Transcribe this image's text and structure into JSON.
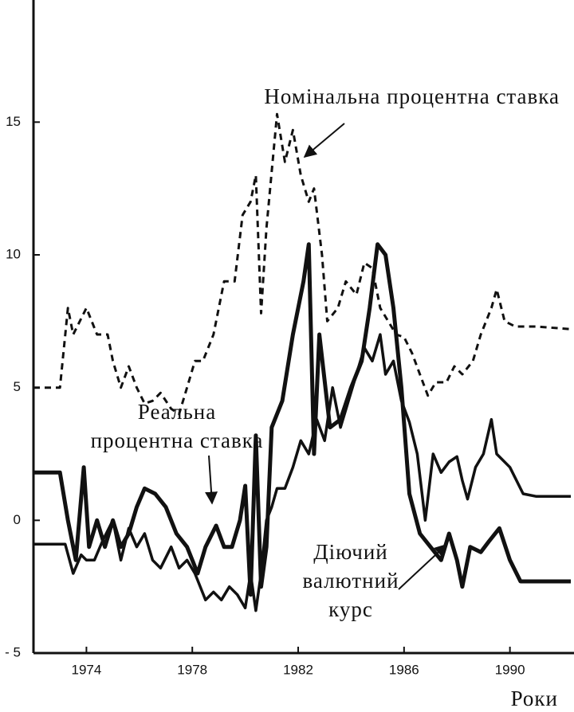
{
  "chart_data": {
    "type": "line",
    "xlim": [
      1972,
      1992.3
    ],
    "ylim": [
      -5,
      19.6
    ],
    "xticks": [
      1974,
      1978,
      1982,
      1986,
      1990
    ],
    "yticks": [
      15,
      10,
      5,
      0,
      {
        "value": -5,
        "label": "- 5"
      }
    ],
    "x_label": "Роки",
    "annotations": [
      {
        "lines": [
          "Номінальна процентна ставка"
        ],
        "series": 0
      },
      {
        "lines": [
          "Реальна",
          "процентна ставка"
        ],
        "series": 1
      },
      {
        "lines": [
          "Діючий",
          "валютний",
          "курс"
        ],
        "series": 2
      }
    ],
    "series": [
      {
        "color": "#111111",
        "style": "dashed",
        "line_width": 3,
        "x": [
          1972,
          1973,
          1973.3,
          1973.5,
          1974,
          1974.4,
          1974.8,
          1975,
          1975.3,
          1975.6,
          1975.9,
          1976.2,
          1976.5,
          1976.8,
          1977.2,
          1977.5,
          1977.8,
          1978.1,
          1978.4,
          1978.8,
          1979.2,
          1979.6,
          1979.9,
          1980.2,
          1980.4,
          1980.6,
          1980.8,
          1981.2,
          1981.5,
          1981.8,
          1982.1,
          1982.4,
          1982.6,
          1982.9,
          1983.1,
          1983.5,
          1983.8,
          1984.2,
          1984.5,
          1984.8,
          1985.1,
          1985.4,
          1985.7,
          1986,
          1986.3,
          1986.6,
          1986.9,
          1987.2,
          1987.6,
          1987.9,
          1988.2,
          1988.6,
          1988.9,
          1989.3,
          1989.5,
          1989.8,
          1990.2,
          1991,
          1992.3
        ],
        "values": [
          5,
          5,
          8,
          7,
          8,
          7,
          7,
          6,
          5,
          5.8,
          5,
          4.4,
          4.5,
          4.8,
          4.2,
          4,
          5,
          6,
          6,
          7,
          9,
          9,
          11.5,
          12,
          13,
          7.8,
          11,
          15.3,
          13.5,
          14.7,
          13,
          12,
          12.5,
          10,
          7.5,
          8,
          9,
          8.5,
          9.7,
          9.5,
          8,
          7.5,
          7,
          6.9,
          6.3,
          5.5,
          4.7,
          5.2,
          5.2,
          5.8,
          5.5,
          6,
          7,
          8,
          8.7,
          7.5,
          7.3,
          7.3,
          7.2
        ]
      },
      {
        "color": "#111111",
        "style": "solid",
        "line_width": 3.5,
        "x": [
          1972,
          1973.2,
          1973.5,
          1973.8,
          1974,
          1974.3,
          1974.6,
          1975,
          1975.3,
          1975.6,
          1975.9,
          1976.2,
          1976.5,
          1976.8,
          1977.2,
          1977.5,
          1977.8,
          1978.1,
          1978.5,
          1978.8,
          1979.1,
          1979.4,
          1979.7,
          1980,
          1980.2,
          1980.4,
          1980.6,
          1980.8,
          1981,
          1981.2,
          1981.5,
          1981.8,
          1982.1,
          1982.4,
          1982.7,
          1983,
          1983.3,
          1983.6,
          1983.9,
          1984.2,
          1984.5,
          1984.8,
          1985.1,
          1985.3,
          1985.6,
          1985.9,
          1986.2,
          1986.5,
          1986.8,
          1987.1,
          1987.4,
          1987.7,
          1988,
          1988.2,
          1988.4,
          1988.7,
          1989,
          1989.3,
          1989.5,
          1990,
          1990.5,
          1991,
          1992.3
        ],
        "values": [
          -0.9,
          -0.9,
          -2,
          -1.3,
          -1.5,
          -1.5,
          -0.8,
          0,
          -1.5,
          -0.3,
          -1,
          -0.5,
          -1.5,
          -1.8,
          -1,
          -1.8,
          -1.5,
          -2,
          -3,
          -2.7,
          -3,
          -2.5,
          -2.8,
          -3.3,
          -2,
          -3.4,
          -2,
          0,
          0.5,
          1.2,
          1.2,
          2,
          3,
          2.5,
          3.8,
          3,
          5,
          3.5,
          4.5,
          5.5,
          6.5,
          6,
          7,
          5.5,
          6,
          4.5,
          3.7,
          2.5,
          0,
          2.5,
          1.8,
          2.2,
          2.4,
          1.5,
          0.8,
          2,
          2.5,
          3.8,
          2.5,
          2,
          1,
          0.9,
          0.9
        ]
      },
      {
        "color": "#111111",
        "style": "solid",
        "line_width": 5,
        "x": [
          1972,
          1973,
          1973.3,
          1973.6,
          1973.9,
          1974.1,
          1974.4,
          1974.7,
          1975,
          1975.3,
          1975.6,
          1975.9,
          1976.2,
          1976.6,
          1977,
          1977.4,
          1977.8,
          1978.2,
          1978.5,
          1978.9,
          1979.2,
          1979.5,
          1979.8,
          1980,
          1980.2,
          1980.4,
          1980.6,
          1980.8,
          1981,
          1981.4,
          1981.8,
          1982.2,
          1982.4,
          1982.6,
          1982.8,
          1983.2,
          1983.6,
          1984,
          1984.4,
          1984.7,
          1985,
          1985.3,
          1985.6,
          1985.9,
          1986.2,
          1986.6,
          1987,
          1987.4,
          1987.7,
          1988,
          1988.2,
          1988.5,
          1988.9,
          1989.2,
          1989.6,
          1990,
          1990.4,
          1991,
          1992.3
        ],
        "values": [
          1.8,
          1.8,
          0,
          -1.5,
          2,
          -1,
          0,
          -1,
          0,
          -1,
          -0.5,
          0.5,
          1.2,
          1,
          0.5,
          -0.5,
          -1,
          -2,
          -1,
          -0.2,
          -1,
          -1,
          0,
          1.3,
          -2.8,
          3.2,
          -2.5,
          -1,
          3.5,
          4.5,
          7,
          9,
          10.4,
          2.5,
          7,
          3.5,
          3.8,
          5,
          6,
          8,
          10.4,
          10,
          8,
          5,
          1,
          -0.5,
          -1,
          -1.5,
          -0.5,
          -1.5,
          -2.5,
          -1,
          -1.2,
          -0.8,
          -0.3,
          -1.5,
          -2.3,
          -2.3,
          -2.3
        ]
      }
    ]
  }
}
